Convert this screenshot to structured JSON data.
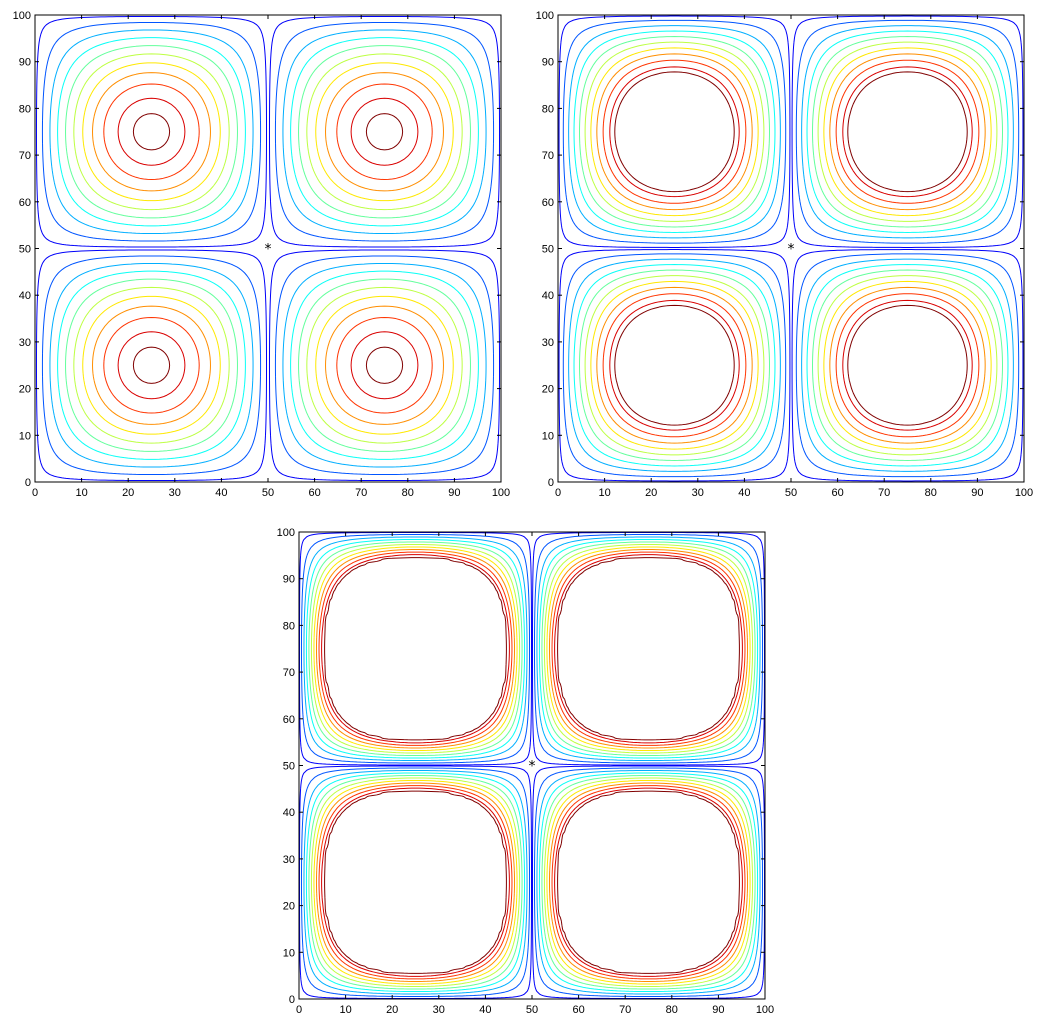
{
  "chart_data": [
    {
      "type": "contour",
      "panel": "top-left",
      "xlim": [
        0,
        100
      ],
      "ylim": [
        0,
        100
      ],
      "xticks": [
        "0",
        "10",
        "20",
        "30",
        "40",
        "50",
        "60",
        "70",
        "80",
        "90",
        "100"
      ],
      "yticks": [
        "0",
        "10",
        "20",
        "30",
        "40",
        "50",
        "60",
        "70",
        "80",
        "90",
        "100"
      ],
      "field": "sin(2*pi*x/100)*sin(2*pi*y/100) style cellular field",
      "contour_levels_fraction": [
        0.02,
        0.1,
        0.2,
        0.3,
        0.4,
        0.5,
        0.6,
        0.7,
        0.8,
        0.9,
        0.97
      ],
      "saturation": 1.0,
      "extrema_centers": [
        [
          25,
          75
        ],
        [
          75,
          75
        ],
        [
          25,
          25
        ],
        [
          75,
          25
        ]
      ],
      "marker": {
        "x": 50,
        "y": 50,
        "symbol": "*"
      },
      "colormap": "jet",
      "grid": false
    },
    {
      "type": "contour",
      "panel": "top-right",
      "xlim": [
        0,
        100
      ],
      "ylim": [
        0,
        100
      ],
      "xticks": [
        "0",
        "10",
        "20",
        "30",
        "40",
        "50",
        "60",
        "70",
        "80",
        "90",
        "100"
      ],
      "yticks": [
        "0",
        "10",
        "20",
        "30",
        "40",
        "50",
        "60",
        "70",
        "80",
        "90",
        "100"
      ],
      "field": "sin(2*pi*x/100)*sin(2*pi*y/100) style cellular field",
      "contour_levels_fraction": [
        0.02,
        0.1,
        0.2,
        0.3,
        0.4,
        0.5,
        0.6,
        0.7,
        0.8,
        0.9,
        0.97
      ],
      "saturation": 1.4,
      "extrema_centers": [
        [
          25,
          75
        ],
        [
          75,
          75
        ],
        [
          25,
          25
        ],
        [
          75,
          25
        ]
      ],
      "marker": {
        "x": 50,
        "y": 50,
        "symbol": "*"
      },
      "colormap": "jet",
      "grid": false
    },
    {
      "type": "contour",
      "panel": "bottom-center",
      "xlim": [
        0,
        100
      ],
      "ylim": [
        0,
        100
      ],
      "xticks": [
        "0",
        "10",
        "20",
        "30",
        "40",
        "50",
        "60",
        "70",
        "80",
        "90",
        "100"
      ],
      "yticks": [
        "0",
        "10",
        "20",
        "30",
        "40",
        "50",
        "60",
        "70",
        "80",
        "90",
        "100"
      ],
      "field": "sin(2*pi*x/100)*sin(2*pi*y/100) style cellular field",
      "contour_levels_fraction": [
        0.02,
        0.1,
        0.2,
        0.3,
        0.4,
        0.5,
        0.6,
        0.7,
        0.8,
        0.9,
        0.97
      ],
      "saturation": 3.0,
      "extrema_centers": [
        [
          25,
          75
        ],
        [
          75,
          75
        ],
        [
          25,
          25
        ],
        [
          75,
          25
        ]
      ],
      "marker": {
        "x": 50,
        "y": 50,
        "symbol": "*"
      },
      "colormap": "jet",
      "grid": false
    }
  ],
  "colors": {
    "frame": "#000000",
    "background": "#ffffff",
    "marker": "#000000"
  }
}
